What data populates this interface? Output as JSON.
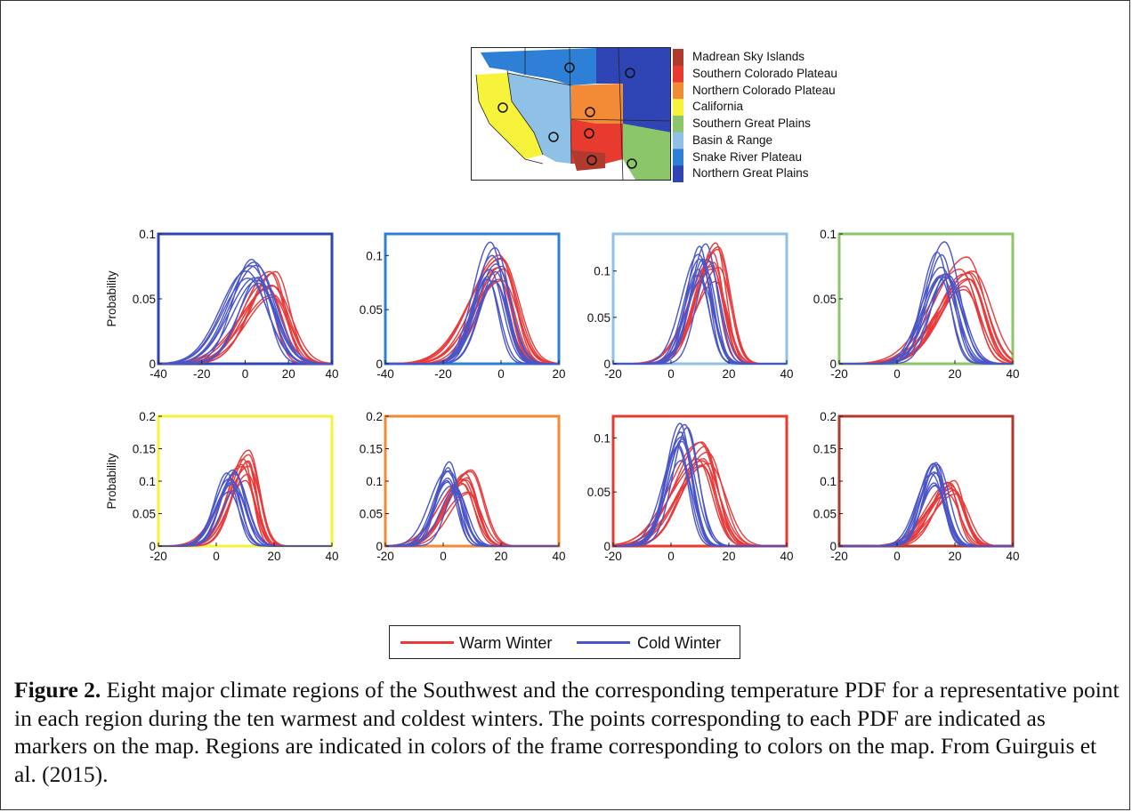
{
  "map": {
    "legend": [
      {
        "label": "Madrean Sky Islands",
        "color": "#b03a2e"
      },
      {
        "label": "Southern Colorado Plateau",
        "color": "#e63b2e"
      },
      {
        "label": "Northern Colorado Plateau",
        "color": "#f28a36"
      },
      {
        "label": "California",
        "color": "#f7f23a"
      },
      {
        "label": "Southern Great Plains",
        "color": "#8cc66b"
      },
      {
        "label": "Basin & Range",
        "color": "#8fc1e6"
      },
      {
        "label": "Snake River Plateau",
        "color": "#2e7fd6"
      },
      {
        "label": "Northern Great Plains",
        "color": "#2f45b5"
      }
    ]
  },
  "legend": {
    "warm_label": "Warm Winter",
    "cold_label": "Cold Winter",
    "warm_color": "#e83a3a",
    "cold_color": "#4a55c8"
  },
  "caption": {
    "label": "Figure 2.",
    "text": "  Eight major climate regions of the Southwest and the corresponding temperature PDF for a representative point in each region during the ten warmest and coldest winters.  The points corresponding to each PDF are indicated as markers on the map. Regions are indicated in colors of the frame corresponding to colors on the map. From Guirguis et al. (2015)."
  },
  "chart_data": [
    {
      "type": "line",
      "region_color": "#2f45b5",
      "ylabel": "Probability",
      "xlim": [
        -40,
        40
      ],
      "ylim": [
        0,
        0.1
      ],
      "xticks": [
        "-40",
        "-20",
        "0",
        "20",
        "40"
      ],
      "yticks": [
        "0",
        "0.05",
        "0.1"
      ],
      "series": [
        {
          "label": "Warm Winter",
          "peak_x": 11,
          "peak_y": 0.06,
          "sd": 7,
          "members": 10
        },
        {
          "label": "Cold Winter",
          "peak_x": 4,
          "peak_y": 0.07,
          "sd": 8,
          "members": 10
        }
      ]
    },
    {
      "type": "line",
      "region_color": "#2e7fd6",
      "ylabel": "",
      "xlim": [
        -40,
        20
      ],
      "ylim": [
        0,
        0.12
      ],
      "xticks": [
        "-40",
        "-20",
        "0",
        "20"
      ],
      "yticks": [
        "0",
        "0.05",
        "0.1"
      ],
      "series": [
        {
          "label": "Warm Winter",
          "peak_x": 0,
          "peak_y": 0.09,
          "sd": 5,
          "members": 10
        },
        {
          "label": "Cold Winter",
          "peak_x": -3,
          "peak_y": 0.095,
          "sd": 4.5,
          "members": 10
        }
      ]
    },
    {
      "type": "line",
      "region_color": "#8fc1e6",
      "ylabel": "",
      "xlim": [
        -20,
        40
      ],
      "ylim": [
        0,
        0.14
      ],
      "xticks": [
        "-20",
        "0",
        "20",
        "40"
      ],
      "yticks": [
        "0",
        "0.05",
        "0.1"
      ],
      "series": [
        {
          "label": "Warm Winter",
          "peak_x": 15,
          "peak_y": 0.11,
          "sd": 3.8,
          "members": 10
        },
        {
          "label": "Cold Winter",
          "peak_x": 11,
          "peak_y": 0.11,
          "sd": 3.8,
          "members": 10
        }
      ]
    },
    {
      "type": "line",
      "region_color": "#8cc66b",
      "ylabel": "",
      "xlim": [
        -20,
        40
      ],
      "ylim": [
        0,
        0.1
      ],
      "xticks": [
        "-20",
        "0",
        "20",
        "40"
      ],
      "yticks": [
        "0",
        "0.05",
        "0.1"
      ],
      "series": [
        {
          "label": "Warm Winter",
          "peak_x": 24,
          "peak_y": 0.07,
          "sd": 5.5,
          "members": 10
        },
        {
          "label": "Cold Winter",
          "peak_x": 16,
          "peak_y": 0.08,
          "sd": 5,
          "members": 10
        }
      ]
    },
    {
      "type": "line",
      "region_color": "#f7f23a",
      "ylabel": "Probability",
      "xlim": [
        -20,
        40
      ],
      "ylim": [
        0,
        0.2
      ],
      "xticks": [
        "-20",
        "0",
        "20",
        "40"
      ],
      "yticks": [
        "0",
        "0.05",
        "0.1",
        "0.15",
        "0.2"
      ],
      "series": [
        {
          "label": "Warm Winter",
          "peak_x": 10,
          "peak_y": 0.125,
          "sd": 3.5,
          "members": 10
        },
        {
          "label": "Cold Winter",
          "peak_x": 5,
          "peak_y": 0.1,
          "sd": 4,
          "members": 10
        }
      ]
    },
    {
      "type": "line",
      "region_color": "#f28a36",
      "ylabel": "",
      "xlim": [
        -20,
        40
      ],
      "ylim": [
        0,
        0.2
      ],
      "xticks": [
        "-20",
        "0",
        "20",
        "40"
      ],
      "yticks": [
        "0",
        "0.05",
        "0.1",
        "0.15",
        "0.2"
      ],
      "series": [
        {
          "label": "Warm Winter",
          "peak_x": 8,
          "peak_y": 0.1,
          "sd": 4,
          "members": 10
        },
        {
          "label": "Cold Winter",
          "peak_x": 3,
          "peak_y": 0.11,
          "sd": 3.8,
          "members": 10
        }
      ]
    },
    {
      "type": "line",
      "region_color": "#e63b2e",
      "ylabel": "",
      "xlim": [
        -20,
        40
      ],
      "ylim": [
        0,
        0.12
      ],
      "xticks": [
        "-20",
        "0",
        "20",
        "40"
      ],
      "yticks": [
        "0",
        "0.05",
        "0.1"
      ],
      "series": [
        {
          "label": "Warm Winter",
          "peak_x": 11,
          "peak_y": 0.09,
          "sd": 5,
          "members": 10
        },
        {
          "label": "Cold Winter",
          "peak_x": 4,
          "peak_y": 0.095,
          "sd": 4.3,
          "members": 10
        }
      ]
    },
    {
      "type": "line",
      "region_color": "#b03a2e",
      "ylabel": "",
      "xlim": [
        -20,
        40
      ],
      "ylim": [
        0,
        0.2
      ],
      "xticks": [
        "-20",
        "0",
        "20",
        "40"
      ],
      "yticks": [
        "0",
        "0.05",
        "0.1",
        "0.15",
        "0.2"
      ],
      "series": [
        {
          "label": "Warm Winter",
          "peak_x": 19,
          "peak_y": 0.09,
          "sd": 4,
          "members": 10
        },
        {
          "label": "Cold Winter",
          "peak_x": 13,
          "peak_y": 0.11,
          "sd": 3.5,
          "members": 10
        }
      ]
    }
  ]
}
